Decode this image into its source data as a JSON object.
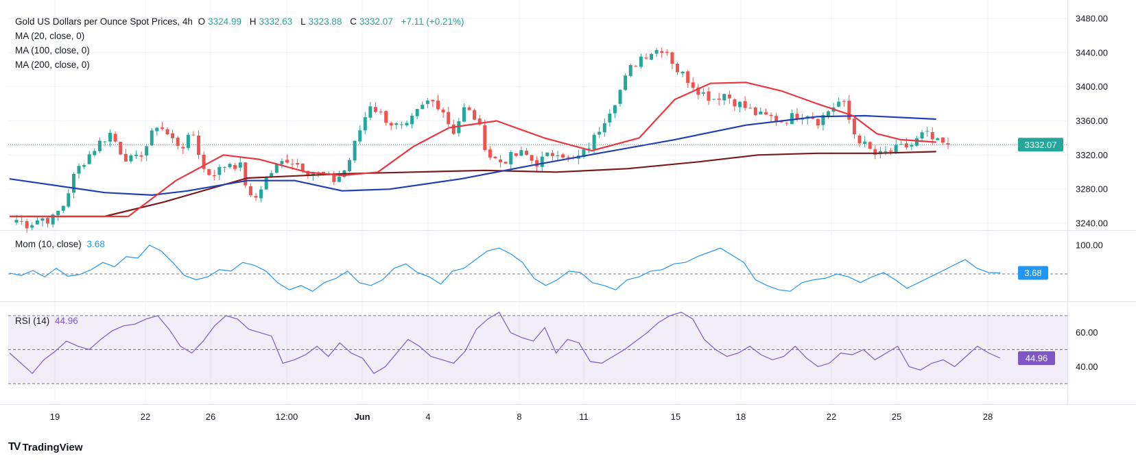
{
  "header": {
    "title": "Gold US Dollars per Ounce Spot Prices, 4h",
    "o_label": "O",
    "o_value": "3324.99",
    "h_label": "H",
    "h_value": "3332.63",
    "l_label": "L",
    "l_value": "3323.88",
    "c_label": "C",
    "c_value": "3332.07",
    "change": "+7.11 (+0.21%)"
  },
  "indicators": {
    "ma20": "MA (20, close, 0)",
    "ma100": "MA (100, close, 0)",
    "ma200": "MA (200, close, 0)",
    "mom_label": "Mom (10, close)",
    "mom_value": "3.68",
    "rsi_label": "RSI (14)",
    "rsi_value": "44.96"
  },
  "branding": {
    "logo_text": "TradingView"
  },
  "colors": {
    "up": "#26a69a",
    "down": "#ef5350",
    "ma20": "#e9363f",
    "ma100": "#1f3fb8",
    "ma200": "#7b1a1a",
    "mom": "#2196f3",
    "rsi": "#7e57c2",
    "grid": "#f0f3fa",
    "price_line": "#26a69a"
  },
  "chart_data": [
    {
      "type": "candlestick",
      "title": "Gold US Dollars per Ounce Spot Prices, 4h",
      "ylim": [
        3232,
        3492
      ],
      "y_ticks": [
        "3480.00",
        "3440.00",
        "3400.00",
        "3360.00",
        "3320.00",
        "3280.00",
        "3240.00"
      ],
      "x_ticks": [
        "19",
        "22",
        "26",
        "12:00",
        "Jun",
        "4",
        "8",
        "11",
        "15",
        "18",
        "22",
        "25",
        "28"
      ],
      "last_price_label": "3332.07",
      "last_price": 3332.07,
      "close_anchors": [
        3244,
        3238,
        3246,
        3244,
        3262,
        3300,
        3318,
        3334,
        3346,
        3320,
        3312,
        3330,
        3358,
        3340,
        3330,
        3344,
        3298,
        3300,
        3312,
        3306,
        3262,
        3290,
        3306,
        3316,
        3308,
        3300,
        3296,
        3290,
        3305,
        3345,
        3380,
        3366,
        3355,
        3350,
        3370,
        3384,
        3378,
        3346,
        3375,
        3362,
        3320,
        3312,
        3318,
        3322,
        3310,
        3318,
        3326,
        3312,
        3320,
        3340,
        3366,
        3390,
        3420,
        3436,
        3442,
        3446,
        3420,
        3408,
        3394,
        3386,
        3392,
        3382,
        3374,
        3366,
        3364,
        3360,
        3366,
        3370,
        3360,
        3374,
        3385,
        3346,
        3330,
        3318,
        3324,
        3328,
        3332,
        3346,
        3334,
        3332
      ],
      "ma20_points": [
        [
          0,
          3190
        ],
        [
          5,
          3205
        ],
        [
          10,
          3240
        ],
        [
          14,
          3290
        ],
        [
          18,
          3320
        ],
        [
          21,
          3315
        ],
        [
          25,
          3300
        ],
        [
          28,
          3296
        ],
        [
          31,
          3300
        ],
        [
          34,
          3330
        ],
        [
          37,
          3352
        ],
        [
          41,
          3360
        ],
        [
          45,
          3340
        ],
        [
          49,
          3325
        ],
        [
          53,
          3340
        ],
        [
          56,
          3385
        ],
        [
          59,
          3404
        ],
        [
          62,
          3405
        ],
        [
          65,
          3395
        ],
        [
          68,
          3380
        ],
        [
          71,
          3366
        ],
        [
          73,
          3345
        ],
        [
          75,
          3338
        ],
        [
          78,
          3335
        ]
      ],
      "ma100_points": [
        [
          0,
          3292
        ],
        [
          8,
          3276
        ],
        [
          12,
          3273
        ],
        [
          15,
          3278
        ],
        [
          20,
          3290
        ],
        [
          24,
          3290
        ],
        [
          28,
          3278
        ],
        [
          32,
          3280
        ],
        [
          38,
          3292
        ],
        [
          44,
          3308
        ],
        [
          50,
          3323
        ],
        [
          56,
          3338
        ],
        [
          62,
          3355
        ],
        [
          68,
          3365
        ],
        [
          72,
          3366
        ],
        [
          78,
          3362
        ]
      ],
      "ma200_points": [
        [
          0,
          3240
        ],
        [
          8,
          3248
        ],
        [
          13,
          3265
        ],
        [
          20,
          3293
        ],
        [
          28,
          3298
        ],
        [
          34,
          3300
        ],
        [
          40,
          3302
        ],
        [
          46,
          3300
        ],
        [
          52,
          3304
        ],
        [
          58,
          3312
        ],
        [
          63,
          3320
        ],
        [
          68,
          3322
        ],
        [
          73,
          3322
        ],
        [
          78,
          3324
        ]
      ]
    },
    {
      "type": "line",
      "title": "Mom (10, close)",
      "ylim": [
        -95,
        150
      ],
      "y_ticks": [
        "100.00"
      ],
      "value_label": "3.68",
      "values": [
        3,
        -5,
        12,
        -10,
        20,
        -8,
        -2,
        15,
        40,
        25,
        60,
        55,
        100,
        80,
        40,
        -5,
        -20,
        -10,
        15,
        10,
        40,
        30,
        10,
        -30,
        -55,
        -40,
        -60,
        -30,
        -15,
        10,
        -30,
        -40,
        -20,
        20,
        35,
        5,
        -10,
        -35,
        10,
        20,
        50,
        80,
        90,
        70,
        40,
        -15,
        -40,
        -20,
        10,
        5,
        -30,
        -40,
        -55,
        -20,
        -10,
        10,
        15,
        35,
        40,
        60,
        75,
        90,
        65,
        40,
        -20,
        -40,
        -55,
        -60,
        -30,
        -20,
        -15,
        0,
        -10,
        -30,
        -10,
        5,
        -20,
        -50,
        -30,
        -10,
        10,
        30,
        50,
        20,
        5,
        3.68
      ]
    },
    {
      "type": "line",
      "title": "RSI (14)",
      "ylim": [
        18,
        78
      ],
      "y_ticks": [
        "60.00",
        "40.00"
      ],
      "value_label": "44.96",
      "bands": [
        70,
        50,
        30
      ],
      "values": [
        48,
        42,
        36,
        44,
        49,
        55,
        52,
        50,
        56,
        61,
        64,
        65,
        68,
        70,
        62,
        52,
        48,
        55,
        64,
        70,
        68,
        62,
        60,
        58,
        42,
        44,
        47,
        52,
        46,
        54,
        48,
        45,
        36,
        40,
        48,
        56,
        52,
        46,
        44,
        42,
        49,
        62,
        68,
        72,
        60,
        57,
        55,
        63,
        48,
        56,
        54,
        43,
        42,
        46,
        50,
        55,
        60,
        66,
        70,
        72,
        68,
        56,
        50,
        46,
        48,
        52,
        47,
        44,
        46,
        52,
        45,
        40,
        42,
        48,
        47,
        50,
        44,
        48,
        52,
        40,
        38,
        42,
        44,
        40,
        46,
        52,
        48,
        44.96
      ]
    }
  ]
}
